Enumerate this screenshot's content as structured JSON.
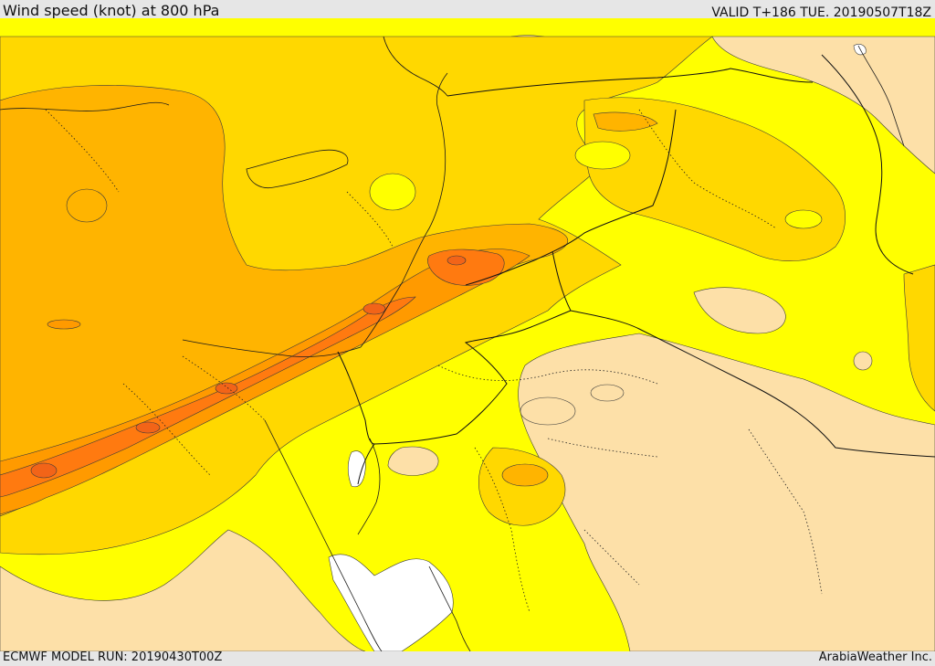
{
  "header": {
    "title": "Wind speed (knot) at 800 hPa",
    "valid": "VALID T+186 TUE. 20190507T18Z"
  },
  "footer": {
    "model_run": "ECMWF MODEL RUN: 20190430T00Z",
    "credit": "ArabiaWeather Inc."
  },
  "map": {
    "palette": {
      "lightest": "#ffffff",
      "pale": "#fde0a8",
      "yellow": "#ffff00",
      "gold": "#ffd800",
      "amber": "#ffb400",
      "orange": "#ff9a00",
      "deep-orange": "#ff7a10",
      "red-orange": "#f26418"
    }
  }
}
